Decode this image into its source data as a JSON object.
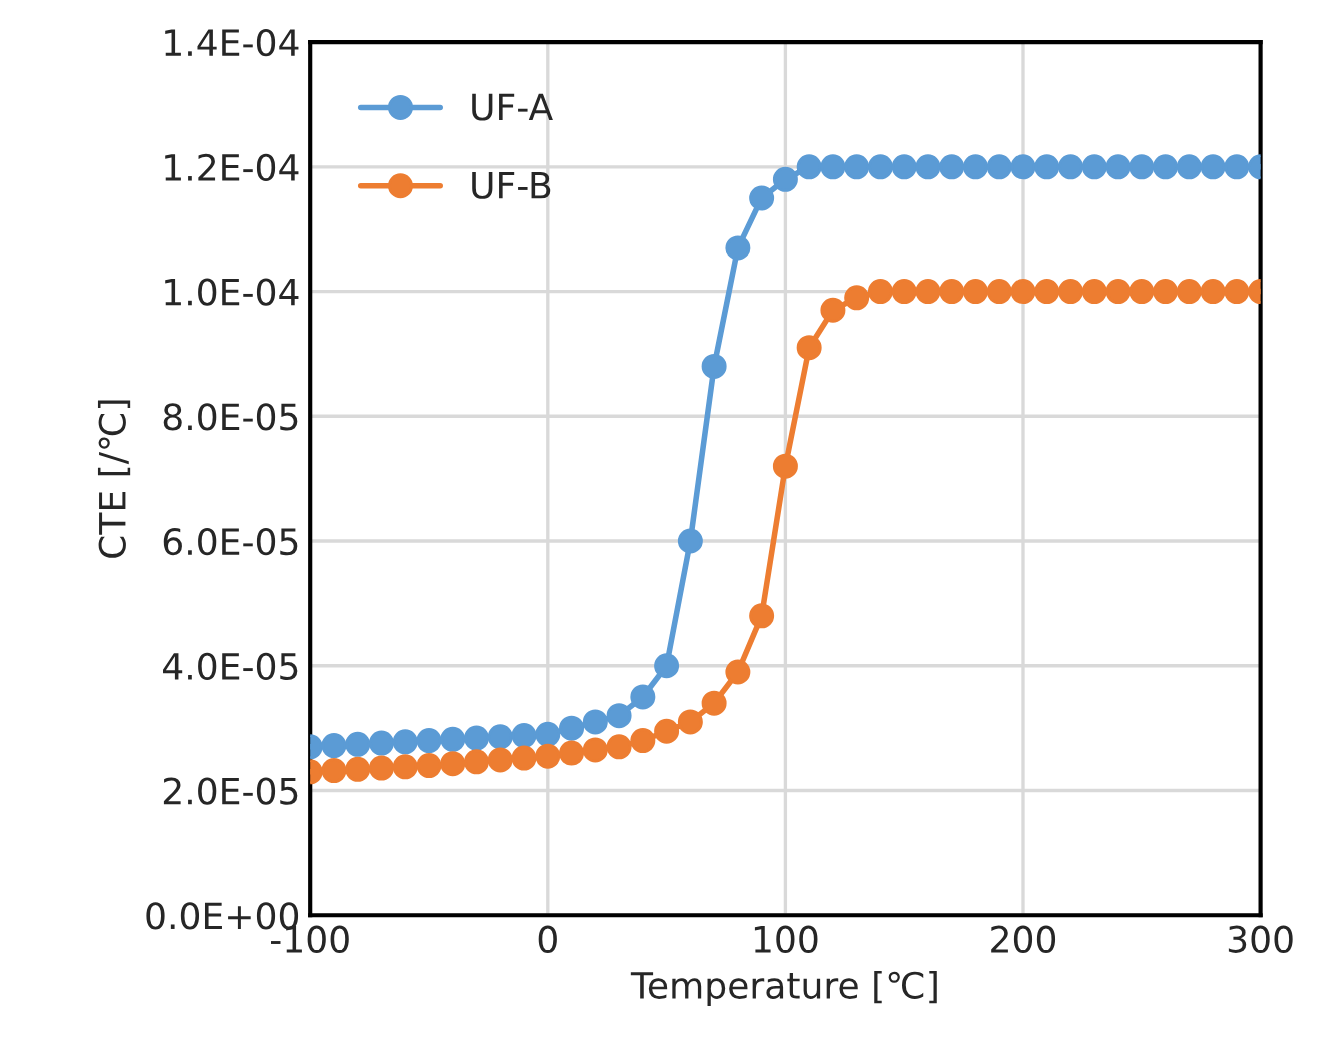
{
  "chart_data": {
    "type": "line",
    "xlabel": "Temperature [℃]",
    "ylabel": "CTE [/℃]",
    "x": [
      -100,
      -90,
      -80,
      -70,
      -60,
      -50,
      -40,
      -30,
      -20,
      -10,
      0,
      10,
      20,
      30,
      40,
      50,
      60,
      70,
      80,
      90,
      100,
      110,
      120,
      130,
      140,
      150,
      160,
      170,
      180,
      190,
      200,
      210,
      220,
      230,
      240,
      250,
      260,
      270,
      280,
      290,
      300
    ],
    "series": [
      {
        "name": "UF-A",
        "color": "#5b9bd5",
        "values": [
          2.7e-05,
          2.72e-05,
          2.74e-05,
          2.76e-05,
          2.78e-05,
          2.8e-05,
          2.82e-05,
          2.84e-05,
          2.86e-05,
          2.88e-05,
          2.9e-05,
          3e-05,
          3.1e-05,
          3.2e-05,
          3.5e-05,
          4e-05,
          6e-05,
          8.8e-05,
          0.000107,
          0.000115,
          0.000118,
          0.00012,
          0.00012,
          0.00012,
          0.00012,
          0.00012,
          0.00012,
          0.00012,
          0.00012,
          0.00012,
          0.00012,
          0.00012,
          0.00012,
          0.00012,
          0.00012,
          0.00012,
          0.00012,
          0.00012,
          0.00012,
          0.00012,
          0.00012
        ]
      },
      {
        "name": "UF-B",
        "color": "#ed7d31",
        "values": [
          2.3e-05,
          2.32e-05,
          2.34e-05,
          2.36e-05,
          2.38e-05,
          2.4e-05,
          2.43e-05,
          2.46e-05,
          2.49e-05,
          2.52e-05,
          2.55e-05,
          2.6e-05,
          2.65e-05,
          2.7e-05,
          2.8e-05,
          2.95e-05,
          3.1e-05,
          3.4e-05,
          3.9e-05,
          4.8e-05,
          7.2e-05,
          9.1e-05,
          9.7e-05,
          9.9e-05,
          0.0001,
          0.0001,
          0.0001,
          0.0001,
          0.0001,
          0.0001,
          0.0001,
          0.0001,
          0.0001,
          0.0001,
          0.0001,
          0.0001,
          0.0001,
          0.0001,
          0.0001,
          0.0001,
          0.0001
        ]
      }
    ],
    "xlim": [
      -100,
      300
    ],
    "xticks": [
      -100,
      0,
      100,
      200,
      300
    ],
    "ylim": [
      0,
      0.00014
    ],
    "yticks": [
      {
        "value": 0,
        "label": "0.0E+00"
      },
      {
        "value": 2e-05,
        "label": "2.0E-05"
      },
      {
        "value": 4e-05,
        "label": "4.0E-05"
      },
      {
        "value": 6e-05,
        "label": "6.0E-05"
      },
      {
        "value": 8e-05,
        "label": "8.0E-05"
      },
      {
        "value": 0.0001,
        "label": "1.0E-04"
      },
      {
        "value": 0.00012,
        "label": "1.2E-04"
      },
      {
        "value": 0.00014,
        "label": "1.4E-04"
      }
    ],
    "grid": true,
    "legend": "top left",
    "marker": "circle",
    "line_style": "solid"
  }
}
